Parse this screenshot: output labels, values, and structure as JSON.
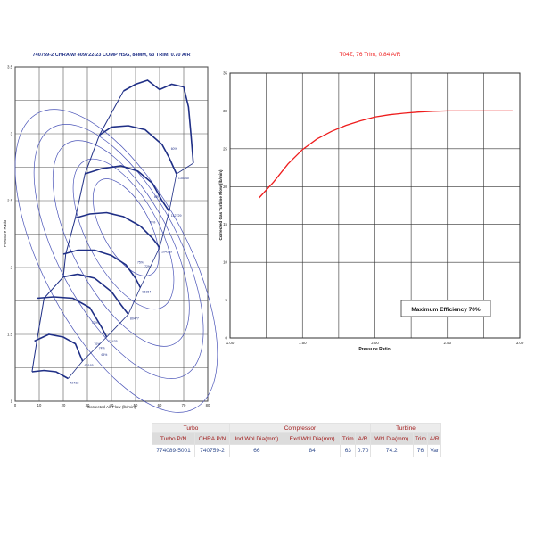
{
  "chart_data": [
    {
      "type": "line",
      "title": "740759-2 CHRA w/ 409722-23 COMP HSG, 84MM, 63 TRIM, 0.70 A/R",
      "xlabel": "Corrected Air Flow (lb/min)",
      "ylabel": "Pressure Ratio",
      "xlim": [
        0,
        80
      ],
      "ylim": [
        1,
        3.5
      ],
      "xticks": [
        "0",
        "10",
        "20",
        "30",
        "40",
        "50",
        "60",
        "70",
        "80"
      ],
      "yticks": [
        "1",
        "1.5",
        "2",
        "2.5",
        "3",
        "3.5"
      ],
      "grid": true,
      "speed_lines": [
        {
          "label": "42432",
          "points": [
            [
              7,
              1.22
            ],
            [
              12,
              1.23
            ],
            [
              17,
              1.22
            ],
            [
              22,
              1.17
            ]
          ]
        },
        {
          "label": "60165",
          "points": [
            [
              8,
              1.45
            ],
            [
              14,
              1.5
            ],
            [
              20,
              1.48
            ],
            [
              25,
              1.43
            ],
            [
              28,
              1.3
            ]
          ]
        },
        {
          "label": "71435",
          "points": [
            [
              9,
              1.77
            ],
            [
              16,
              1.78
            ],
            [
              24,
              1.77
            ],
            [
              31,
              1.7
            ],
            [
              36,
              1.55
            ],
            [
              38,
              1.48
            ]
          ]
        },
        {
          "label": "80477",
          "points": [
            [
              20,
              1.93
            ],
            [
              26,
              1.95
            ],
            [
              33,
              1.92
            ],
            [
              40,
              1.82
            ],
            [
              44,
              1.72
            ],
            [
              47,
              1.65
            ]
          ]
        },
        {
          "label": "95154",
          "points": [
            [
              20,
              2.1
            ],
            [
              26,
              2.13
            ],
            [
              33,
              2.13
            ],
            [
              40,
              2.09
            ],
            [
              46,
              2.02
            ],
            [
              50,
              1.92
            ],
            [
              52,
              1.85
            ]
          ]
        },
        {
          "label": "104339",
          "points": [
            [
              25,
              2.37
            ],
            [
              31,
              2.4
            ],
            [
              38,
              2.41
            ],
            [
              45,
              2.38
            ],
            [
              52,
              2.31
            ],
            [
              57,
              2.22
            ],
            [
              60,
              2.15
            ]
          ]
        },
        {
          "label": "112729",
          "points": [
            [
              29,
              2.7
            ],
            [
              36,
              2.74
            ],
            [
              44,
              2.76
            ],
            [
              51,
              2.72
            ],
            [
              57,
              2.63
            ],
            [
              61,
              2.5
            ],
            [
              64,
              2.42
            ]
          ]
        },
        {
          "label": "130040",
          "points": [
            [
              35,
              2.99
            ],
            [
              40,
              3.05
            ],
            [
              47,
              3.06
            ],
            [
              54,
              3.03
            ],
            [
              61,
              2.92
            ],
            [
              64,
              2.82
            ],
            [
              67,
              2.7
            ]
          ]
        },
        {
          "label": "",
          "points": [
            [
              45,
              3.32
            ],
            [
              50,
              3.37
            ],
            [
              55,
              3.4
            ],
            [
              60,
              3.33
            ],
            [
              65,
              3.37
            ],
            [
              70,
              3.35
            ],
            [
              72,
              3.2
            ],
            [
              73,
              3.0
            ],
            [
              74,
              2.78
            ]
          ]
        }
      ],
      "surge_line": [
        [
          7,
          1.22
        ],
        [
          9,
          1.45
        ],
        [
          12,
          1.77
        ],
        [
          20,
          1.93
        ],
        [
          21,
          2.1
        ],
        [
          25,
          2.37
        ],
        [
          29,
          2.7
        ],
        [
          35,
          2.99
        ],
        [
          45,
          3.32
        ]
      ],
      "choke_line": [
        [
          22,
          1.17
        ],
        [
          28,
          1.3
        ],
        [
          38,
          1.48
        ],
        [
          47,
          1.65
        ],
        [
          52,
          1.85
        ],
        [
          60,
          2.15
        ],
        [
          64,
          2.42
        ],
        [
          67,
          2.7
        ],
        [
          74,
          2.78
        ]
      ],
      "efficiency_labels": [
        "60%",
        "65%",
        "70%",
        "72%",
        "75%",
        "74%",
        "72%",
        "70%",
        "65%"
      ],
      "efficiency_label_values": [
        [
          66,
          2.88
        ],
        [
          59,
          2.52
        ],
        [
          57,
          2.33
        ],
        [
          55,
          2.0
        ],
        [
          52,
          2.03
        ],
        [
          36,
          1.39
        ],
        [
          33,
          1.58
        ],
        [
          34,
          1.42
        ],
        [
          37,
          1.34
        ]
      ]
    },
    {
      "type": "line",
      "title": "T04Z, 76 Trim, 0.84 A/R",
      "xlabel": "Pressure Ratio",
      "ylabel": "Corrected Gas Turbine Flow (lb/min)",
      "xlim": [
        1.0,
        3.0
      ],
      "ylim": [
        0,
        35
      ],
      "xticks": [
        "1.00",
        "1.50",
        "2.00",
        "2.50",
        "3.00"
      ],
      "yticks": [
        "0",
        "5",
        "10",
        "15",
        "20",
        "25",
        "30",
        "35"
      ],
      "grid": true,
      "series": [
        {
          "color": "#ee1c1c",
          "x": [
            1.2,
            1.3,
            1.4,
            1.5,
            1.6,
            1.7,
            1.8,
            1.9,
            2.0,
            2.1,
            2.2,
            2.3,
            2.4,
            2.5,
            2.6,
            2.7,
            2.8,
            2.9,
            2.95
          ],
          "y": [
            18.5,
            20.6,
            23.0,
            24.9,
            26.3,
            27.3,
            28.1,
            28.7,
            29.2,
            29.5,
            29.7,
            29.85,
            29.95,
            30.0,
            30.0,
            30.0,
            30.0,
            30.0,
            30.0
          ]
        }
      ],
      "annotation": "Maximum Efficiency 70%"
    }
  ],
  "spec_table": {
    "groups": [
      {
        "label": "Turbo",
        "span": 2
      },
      {
        "label": "Compressor",
        "span": 4
      },
      {
        "label": "Turbine",
        "span": 3
      }
    ],
    "headers": [
      "Turbo P/N",
      "CHRA P/N",
      "Ind Whl Dia(mm)",
      "Exd Whl Dia(mm)",
      "Trim",
      "A/R",
      "Whl Dia(mm)",
      "Trim",
      "A/R"
    ],
    "rows": [
      [
        "774089-5001",
        "740759-2",
        "66",
        "84",
        "63",
        "0.70",
        "74.2",
        "76",
        "Var"
      ]
    ]
  },
  "colors": {
    "compressor_title": "#1f2f86",
    "turbine_title": "#ee1c1c",
    "speed_line": "#1f2f86",
    "efficiency_island": "#4b55b8",
    "turbine_curve": "#ee1c1c",
    "table_header_text": "#a01818",
    "table_value_text": "#2f4a8c"
  }
}
